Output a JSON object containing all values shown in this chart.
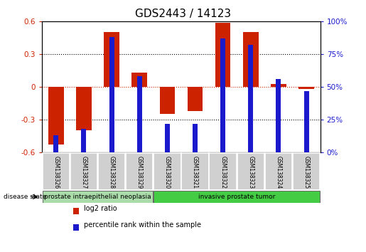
{
  "title": "GDS2443 / 14123",
  "samples": [
    "GSM138326",
    "GSM138327",
    "GSM138328",
    "GSM138329",
    "GSM138320",
    "GSM138321",
    "GSM138322",
    "GSM138323",
    "GSM138324",
    "GSM138325"
  ],
  "log2_ratio": [
    -0.53,
    -0.4,
    0.5,
    0.13,
    -0.25,
    -0.22,
    0.59,
    0.5,
    0.03,
    -0.02
  ],
  "percentile_rank": [
    13,
    18,
    88,
    58,
    22,
    22,
    87,
    82,
    56,
    47
  ],
  "ylim_left": [
    -0.6,
    0.6
  ],
  "ylim_right": [
    0,
    100
  ],
  "yticks_left": [
    -0.6,
    -0.3,
    0.0,
    0.3,
    0.6
  ],
  "yticks_right": [
    0,
    25,
    50,
    75,
    100
  ],
  "ytick_labels_left": [
    "-0.6",
    "-0.3",
    "0",
    "0.3",
    "0.6"
  ],
  "ytick_labels_right": [
    "0%",
    "25%",
    "50%",
    "75%",
    "100%"
  ],
  "red_color": "#cc2200",
  "blue_color": "#1a1acc",
  "group1_label": "prostate intraepithelial neoplasia",
  "group2_label": "invasive prostate tumor",
  "group1_indices": [
    0,
    1,
    2,
    3
  ],
  "group2_indices": [
    4,
    5,
    6,
    7,
    8,
    9
  ],
  "group1_color": "#aaddaa",
  "group2_color": "#44cc44",
  "disease_state_label": "disease state",
  "legend1": "log2 ratio",
  "legend2": "percentile rank within the sample",
  "title_fontsize": 11,
  "tick_fontsize": 7.5,
  "sample_fontsize": 5.5,
  "group_fontsize": 6.5,
  "legend_fontsize": 7
}
